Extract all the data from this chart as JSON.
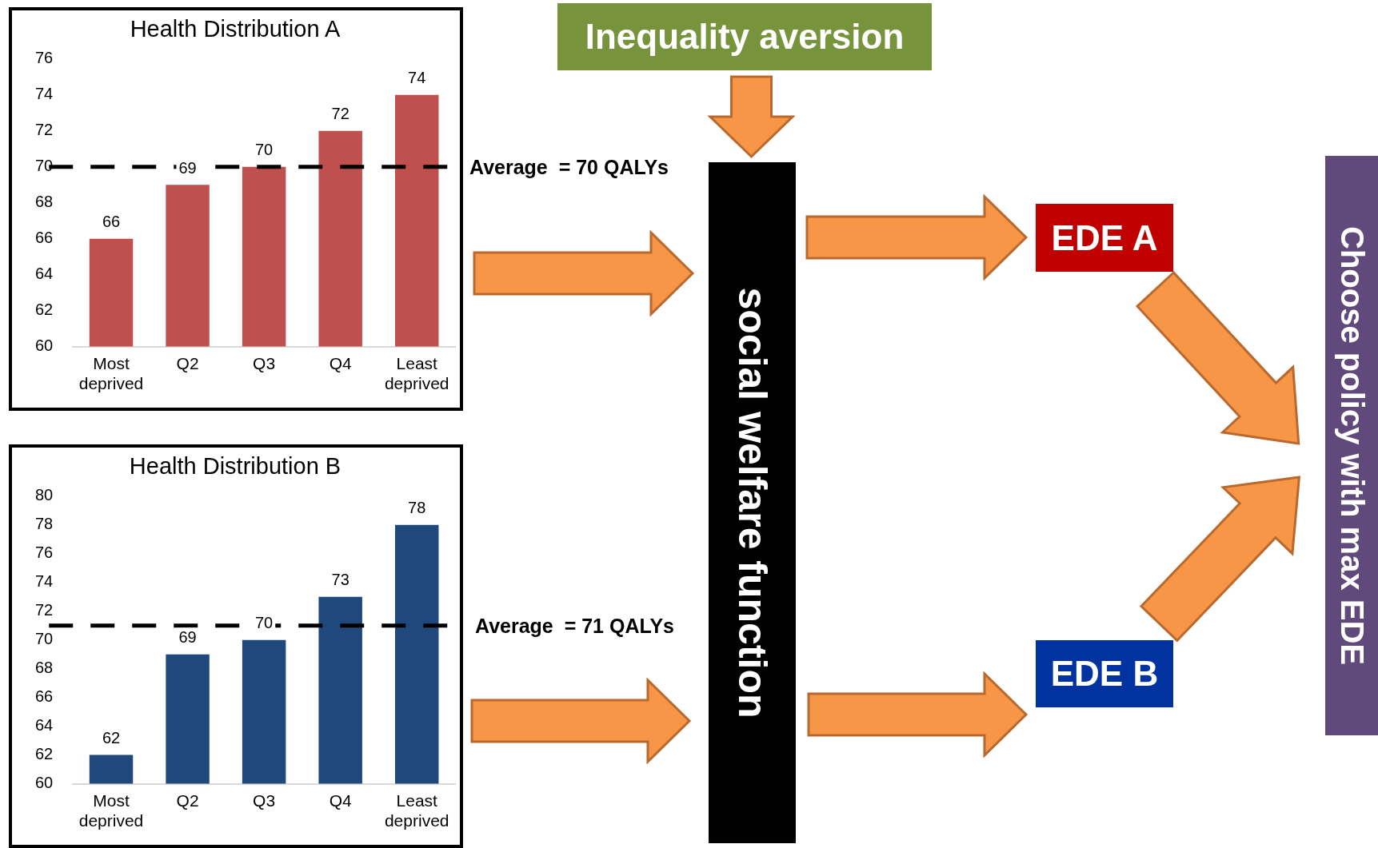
{
  "chart_data": [
    {
      "type": "bar",
      "title": "Health Distribution A",
      "categories": [
        "Most deprived",
        "Q2",
        "Q3",
        "Q4",
        "Least deprived"
      ],
      "values": [
        66,
        69,
        70,
        72,
        74
      ],
      "color": "#c0504d",
      "ylim": [
        60,
        76
      ],
      "yticks": [
        60,
        62,
        64,
        66,
        68,
        70,
        72,
        74,
        76
      ],
      "data_labels": true,
      "ref_lines": [
        {
          "axis": "y",
          "value": 70,
          "label": "Average  = 70 QALYs",
          "color": "#000000",
          "line_style": "dashed"
        }
      ]
    },
    {
      "type": "bar",
      "title": "Health Distribution B",
      "categories": [
        "Most deprived",
        "Q2",
        "Q3",
        "Q4",
        "Least deprived"
      ],
      "values": [
        62,
        69,
        70,
        73,
        78
      ],
      "color": "#1f497d",
      "ylim": [
        60,
        80
      ],
      "yticks": [
        60,
        62,
        64,
        66,
        68,
        70,
        72,
        74,
        76,
        78,
        80
      ],
      "data_labels": true,
      "ref_lines": [
        {
          "axis": "y",
          "value": 71,
          "label": "Average  = 71 QALYs",
          "color": "#000000",
          "line_style": "dashed"
        }
      ]
    },
    {
      "type": "other",
      "annotations": [
        "Inequality aversion",
        "social welfare function",
        "EDE A",
        "EDE B",
        "Choose policy with max EDE"
      ]
    }
  ]
}
